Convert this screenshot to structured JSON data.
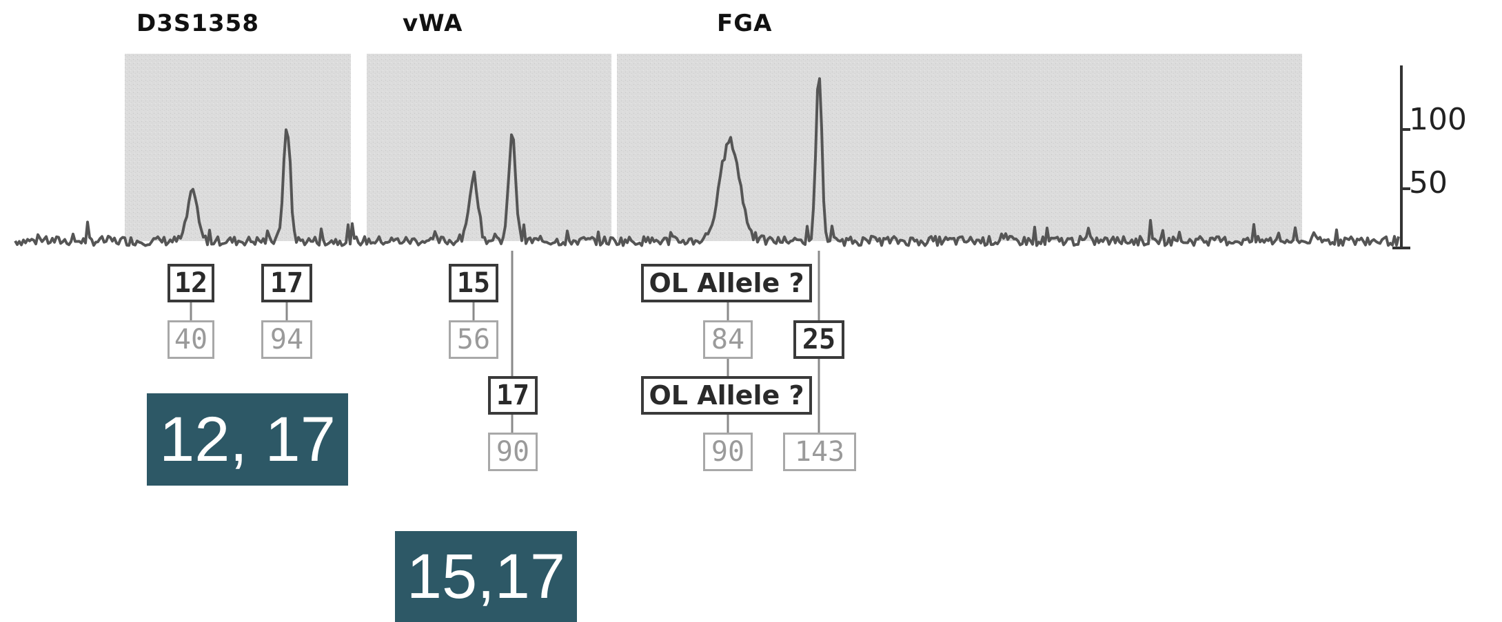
{
  "colors": {
    "background": "#ffffff",
    "shade": "#dcdcdc",
    "trace": "#555555",
    "summary_bg": "#2d5866",
    "summary_text": "#ffffff"
  },
  "chart_data": {
    "type": "line",
    "title": "",
    "xlabel": "",
    "ylabel": "",
    "ylim": [
      0,
      150
    ],
    "yticks": [
      50,
      100
    ],
    "grid": false,
    "loci": [
      {
        "name": "D3S1358"
      },
      {
        "name": "vWA"
      },
      {
        "name": "FGA"
      }
    ],
    "peaks": [
      {
        "locus": "D3S1358",
        "allele": "12",
        "height": 40
      },
      {
        "locus": "D3S1358",
        "allele": "17",
        "height": 94
      },
      {
        "locus": "vWA",
        "allele": "15",
        "height": 56
      },
      {
        "locus": "vWA",
        "allele": "17",
        "height": 90
      },
      {
        "locus": "FGA",
        "allele": "OL Allele ?",
        "height": 84
      },
      {
        "locus": "FGA",
        "allele": "OL Allele ?",
        "height": 90
      },
      {
        "locus": "FGA",
        "allele": "25",
        "height": 143
      }
    ]
  },
  "labels": {
    "p12": "12",
    "h40": "40",
    "p17a": "17",
    "h94": "94",
    "p15": "15",
    "h56": "56",
    "p17b": "17",
    "h90a": "90",
    "ol1": "OL Allele ?",
    "h84": "84",
    "ol2": "OL Allele ?",
    "h90b": "90",
    "p25": "25",
    "h143": "143"
  },
  "summaries": {
    "d3": "12, 17",
    "vwa": "15,17"
  }
}
